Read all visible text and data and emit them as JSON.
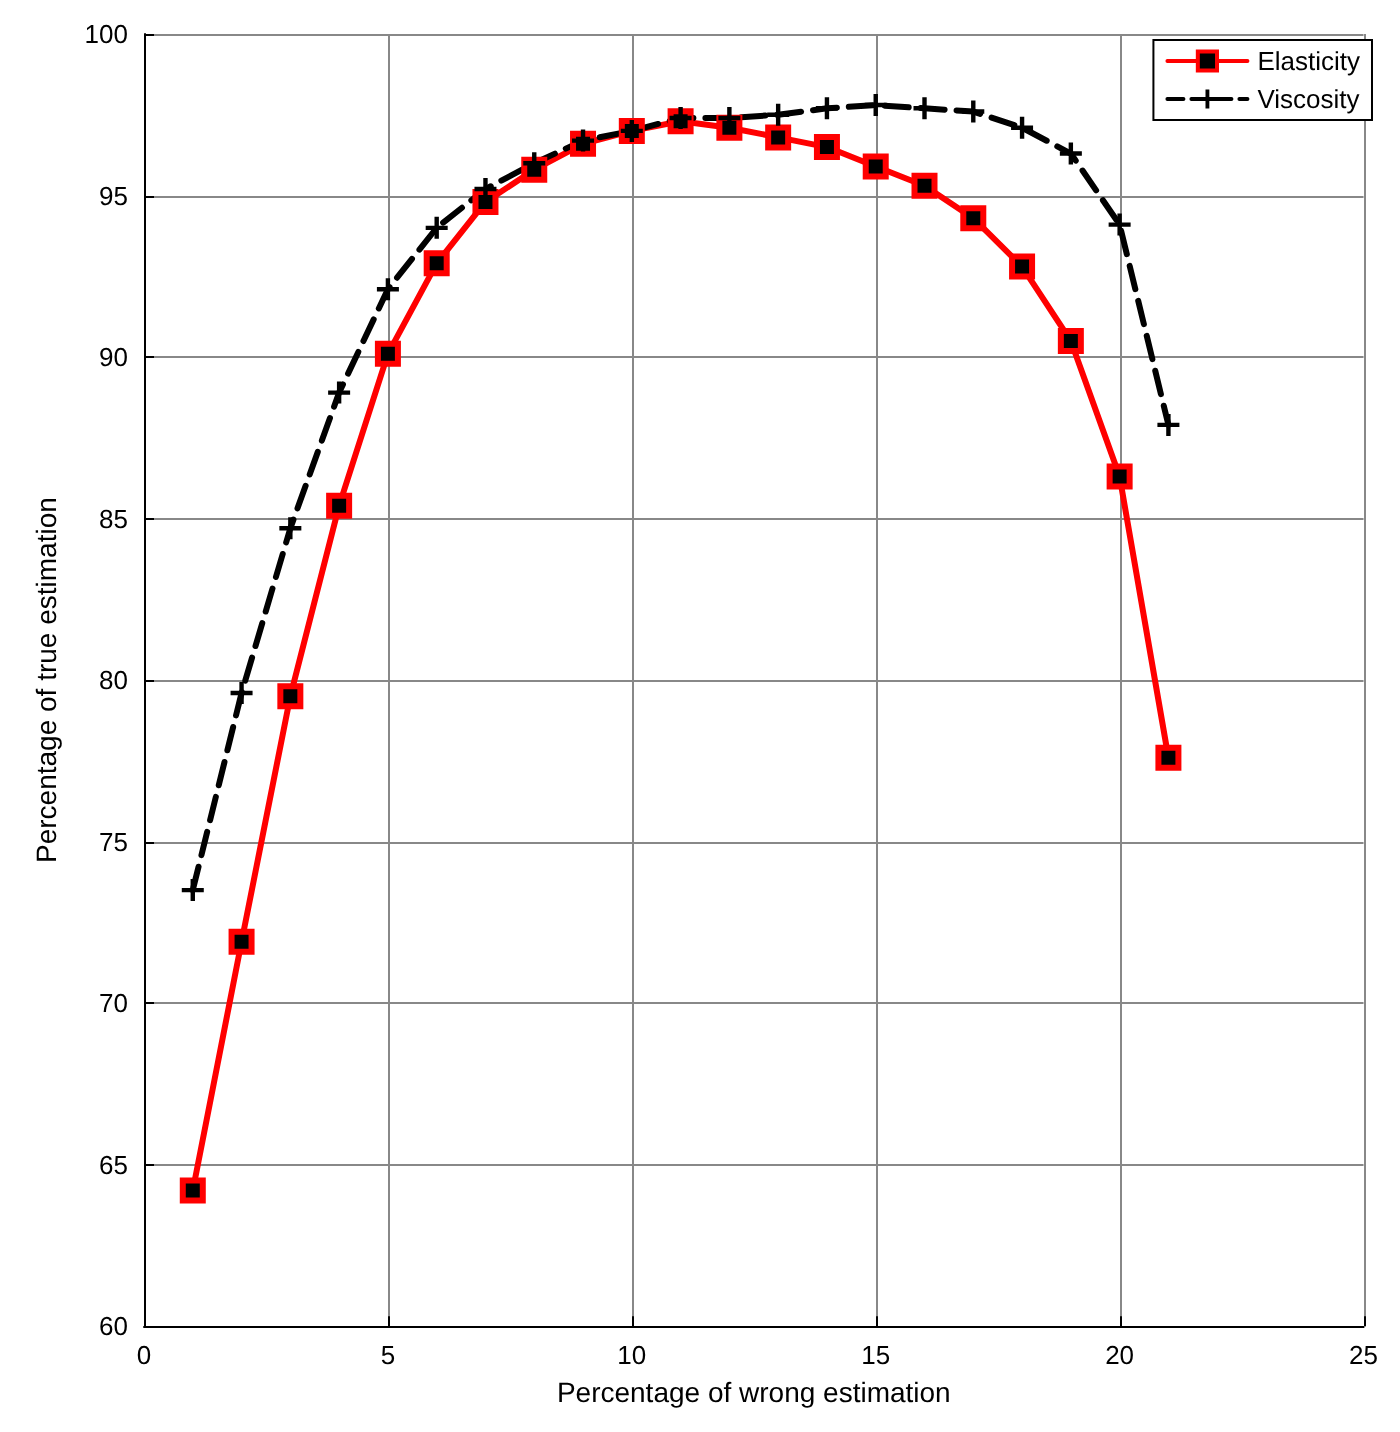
{
  "chart_data": {
    "type": "line",
    "xlabel": "Percentage of wrong estimation",
    "ylabel": "Percentage of true estimation",
    "x": [
      1,
      2,
      3,
      4,
      5,
      6,
      7,
      8,
      9,
      10,
      11,
      12,
      13,
      14,
      15,
      16,
      17,
      18,
      19,
      20,
      21
    ],
    "series": [
      {
        "name": "Elasticity",
        "color": "#ff0000",
        "marker": "square",
        "line_style": "solid",
        "values": [
          64.2,
          71.9,
          79.5,
          85.4,
          90.1,
          92.9,
          94.8,
          95.8,
          96.6,
          97.0,
          97.3,
          97.1,
          96.8,
          96.5,
          95.9,
          95.3,
          94.3,
          92.8,
          90.5,
          86.3,
          77.6
        ]
      },
      {
        "name": "Viscosity",
        "color": "#000000",
        "marker": "cross",
        "line_style": "dashed",
        "values": [
          73.5,
          79.6,
          84.7,
          88.9,
          92.1,
          94.0,
          95.2,
          96.0,
          96.7,
          97.0,
          97.4,
          97.4,
          97.5,
          97.7,
          97.8,
          97.7,
          97.6,
          97.1,
          96.3,
          94.1,
          87.9
        ]
      }
    ],
    "xlim": [
      0,
      25
    ],
    "xticks": [
      0,
      5,
      10,
      15,
      20,
      25
    ],
    "ylim": [
      60,
      100
    ],
    "yticks": [
      60,
      65,
      70,
      75,
      80,
      85,
      90,
      95,
      100
    ],
    "grid": true,
    "legend": "top right"
  }
}
